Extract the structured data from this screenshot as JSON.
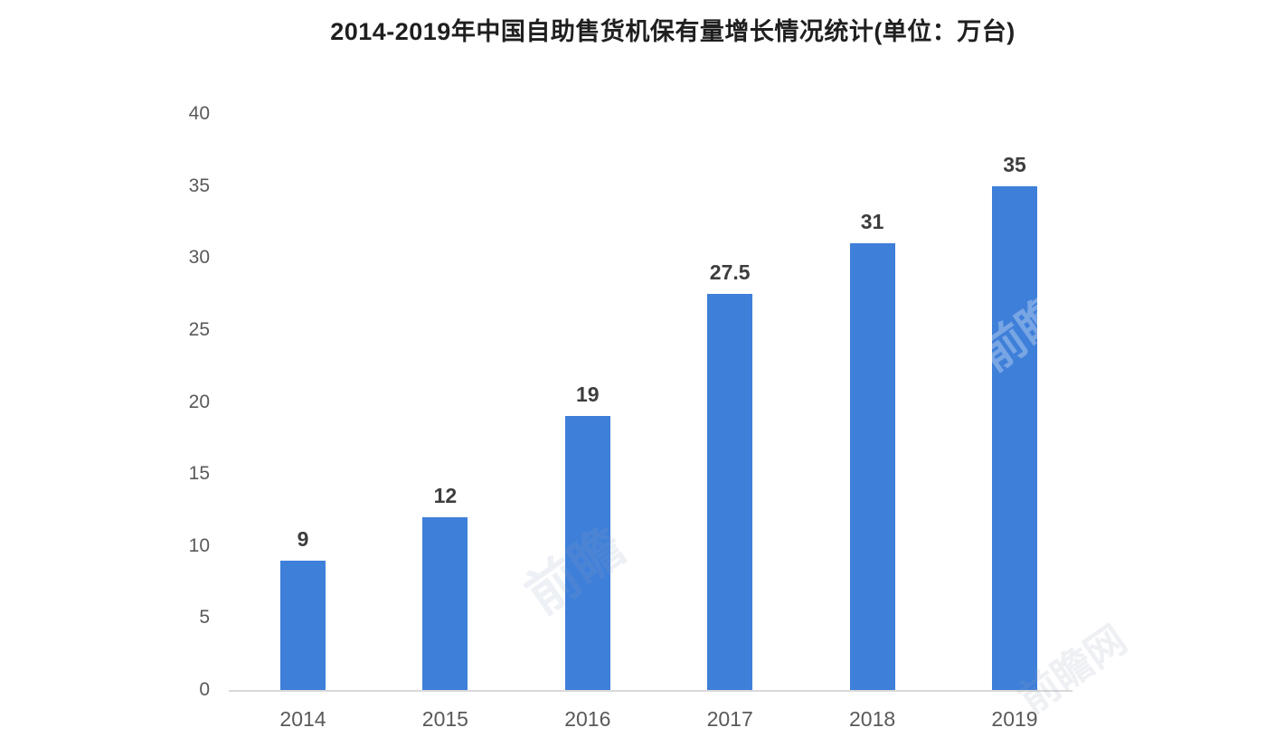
{
  "chart_data": {
    "type": "bar",
    "title": "2014-2019年中国自助售货机保有量增长情况统计(单位：万台)",
    "categories": [
      "2014",
      "2015",
      "2016",
      "2017",
      "2018",
      "2019"
    ],
    "values": [
      9,
      12,
      19,
      27.5,
      31,
      35
    ],
    "value_labels": [
      "9",
      "12",
      "19",
      "27.5",
      "31",
      "35"
    ],
    "xlabel": "",
    "ylabel": "",
    "y_ticks": [
      0,
      5,
      10,
      15,
      20,
      25,
      30,
      35,
      40
    ],
    "ylim": [
      0,
      40
    ],
    "grid": false,
    "legend_position": "none",
    "bar_color": "#3e7fd9",
    "axis_line_color": "#d9d9d9",
    "title_color": "#1f1f1f",
    "tick_label_color": "#595959",
    "value_label_color": "#3d3d3d"
  },
  "watermarks": [
    {
      "text": "前瞻"
    },
    {
      "text": "前瞻"
    },
    {
      "text": "前瞻网"
    }
  ]
}
